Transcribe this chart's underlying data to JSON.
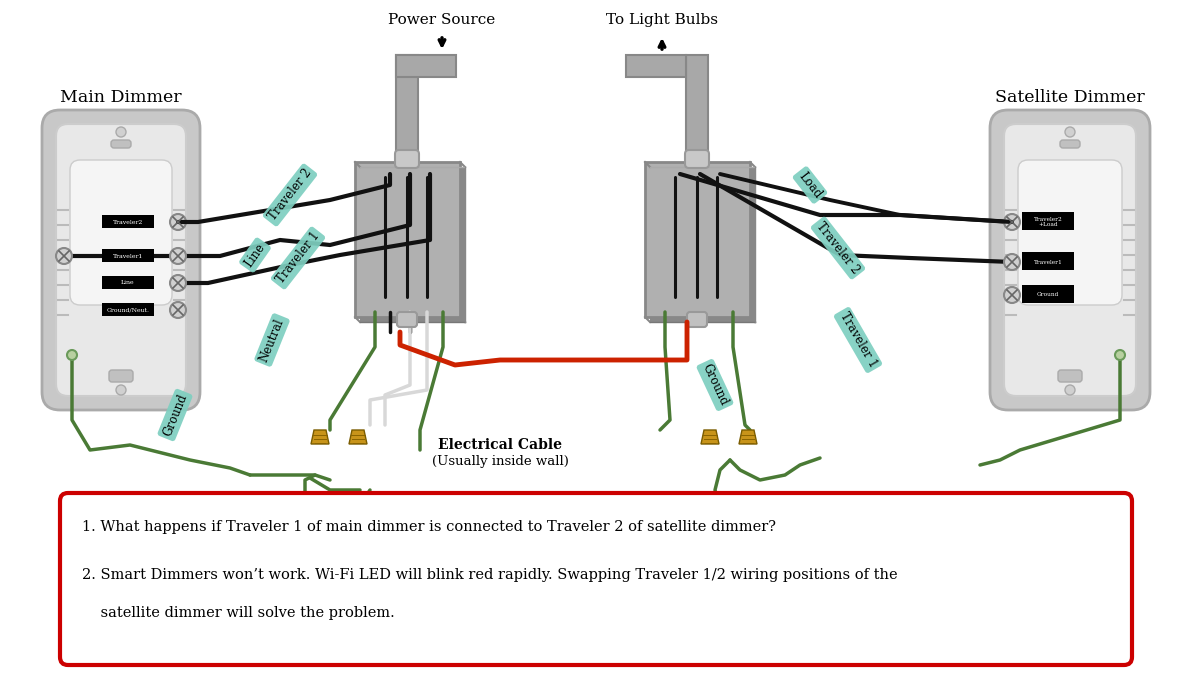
{
  "background_color": "#ffffff",
  "power_source_label": "Power Source",
  "light_bulbs_label": "To Light Bulbs",
  "main_dimmer_label": "Main Dimmer",
  "satellite_dimmer_label": "Satellite Dimmer",
  "electrical_cable_label_1": "Electrical Cable",
  "electrical_cable_label_2": "(Usually inside wall)",
  "text_box_line1": "1. What happens if Traveler 1 of main dimmer is connected to Traveler 2 of satellite dimmer?",
  "text_box_line2": "2. Smart Dimmers won’t work. Wi-Fi LED will blink red rapidly. Swapping Traveler 1/2 wiring positions of the",
  "text_box_line3": "    satellite dimmer will solve the problem.",
  "wire_black": "#111111",
  "wire_green": "#4a7a35",
  "wire_red": "#cc2200",
  "wire_white": "#d8d8d8",
  "wire_gray": "#888888",
  "label_bg": "#7ecfc0",
  "label_text": "#ffffff",
  "text_box_border": "#cc0000",
  "text_box_fill": "#ffffff",
  "dimmer_outer": "#c8c8c8",
  "dimmer_inner": "#e8e8e8",
  "dimmer_body": "#f0f0f0",
  "jbox_fill": "#aaaaaa",
  "conduit_fill": "#a0a0a0",
  "font_family": "DejaVu Serif"
}
